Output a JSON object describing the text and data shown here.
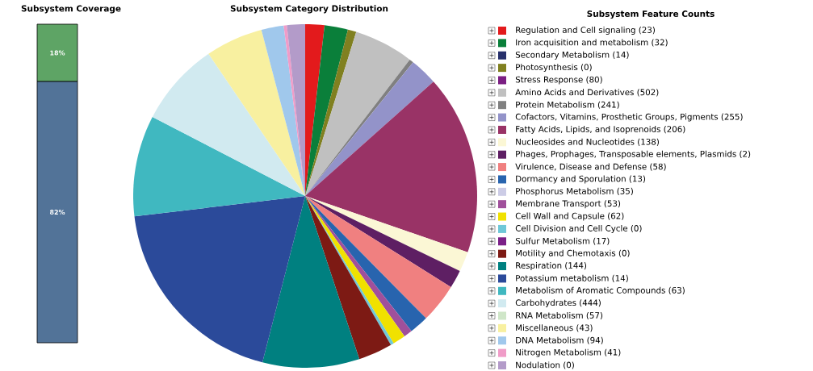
{
  "chart_data": [
    {
      "type": "bar",
      "title": "Subsystem Coverage",
      "categories": [
        null
      ],
      "stacked": true,
      "series": [
        {
          "color": "#527398",
          "values": [
            82
          ],
          "value_labels": [
            "82%"
          ]
        },
        {
          "color": "#5ea465",
          "values": [
            18
          ],
          "value_labels": [
            "18%"
          ]
        }
      ]
    },
    {
      "type": "pie",
      "title": "Subsystem Category Distribution",
      "legend_title": "Subsystem Feature Counts",
      "legend": "right",
      "categories": [
        "Regulation and Cell signaling (23)",
        "Iron acquisition and metabolism (32)",
        "Secondary Metabolism (14)",
        "Photosynthesis (0)",
        "Stress Response (80)",
        "Amino Acids and Derivatives (502)",
        "Protein Metabolism (241)",
        "Cofactors, Vitamins, Prosthetic Groups, Pigments (255)",
        "Fatty Acids, Lipids, and Isoprenoids (206)",
        "Nucleosides and Nucleotides (138)",
        "Phages, Prophages, Transposable elements, Plasmids (2)",
        "Virulence, Disease and Defense (58)",
        "Dormancy and Sporulation (13)",
        "Phosphorus Metabolism (35)",
        "Membrane Transport (53)",
        "Cell Wall and Capsule (62)",
        "Cell Division and Cell Cycle (0)",
        "Sulfur Metabolism (17)",
        "Motility and Chemotaxis (0)",
        "Respiration (144)",
        "Potassium metabolism (14)",
        "Metabolism of Aromatic Compounds (63)",
        "Carbohydrates (444)",
        "RNA Metabolism (57)",
        "Miscellaneous (43)",
        "DNA Metabolism (94)",
        "Nitrogen Metabolism (41)",
        "Nodulation (0)"
      ],
      "values": [
        1.8,
        2.2,
        0,
        0.8,
        0,
        5.6,
        0.4,
        2.6,
        16.9,
        1.9,
        1.7,
        3.7,
        1.8,
        0,
        0.8,
        1.2,
        0.3,
        0,
        3.2,
        9.1,
        19.1,
        9.5,
        7.9,
        0,
        5.4,
        2.1,
        0.3,
        1.7
      ],
      "colors": [
        "#e31a1c",
        "#0a7f3a",
        "#27306b",
        "#808020",
        "#7b1f83",
        "#c0c0c0",
        "#808080",
        "#9393c9",
        "#993366",
        "#fbf7d5",
        "#5e1f63",
        "#f08080",
        "#2864ae",
        "#cccce6",
        "#a0509b",
        "#f0e100",
        "#6fc8d8",
        "#7b2088",
        "#7d1a14",
        "#008080",
        "#2b4a9a",
        "#40b8c0",
        "#d1eaf0",
        "#cfe6c8",
        "#f8f0a0",
        "#a0c8ec",
        "#f09cc8",
        "#b39bc9"
      ]
    }
  ]
}
